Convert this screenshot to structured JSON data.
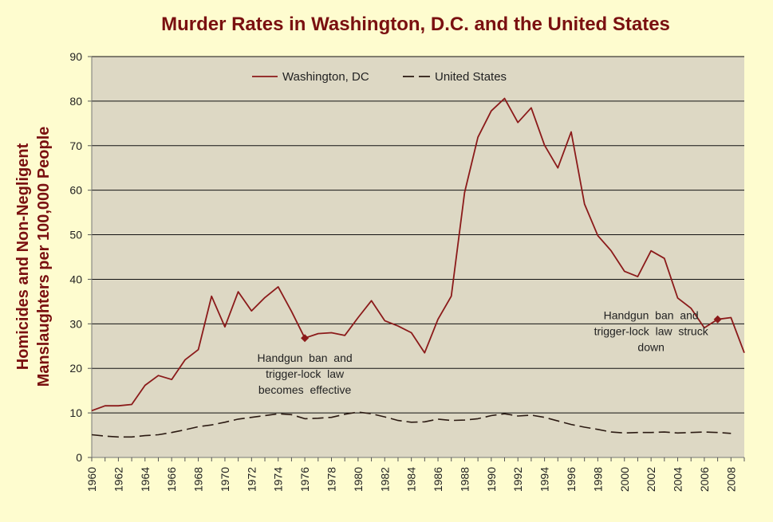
{
  "chart_data": {
    "type": "line",
    "title": "Murder Rates in Washington, D.C. and the United States",
    "ylabel": [
      "Homicides and Non-Negligent",
      "Manslaughters per 100,000 People"
    ],
    "xlabel": "",
    "xlim": [
      1960,
      2009
    ],
    "ylim": [
      0,
      90
    ],
    "yticks": [
      "0",
      "10",
      "20",
      "30",
      "40",
      "50",
      "60",
      "70",
      "80",
      "90"
    ],
    "xticks": [
      "1960",
      "1962",
      "1964",
      "1966",
      "1968",
      "1970",
      "1972",
      "1974",
      "1976",
      "1978",
      "1980",
      "1982",
      "1984",
      "1986",
      "1988",
      "1990",
      "1992",
      "1994",
      "1996",
      "1998",
      "2000",
      "2002",
      "2004",
      "2006",
      "2008"
    ],
    "grid": true,
    "legend_position": "top",
    "colors": {
      "background": "#fefccf",
      "plot_area": "#ddd8c4",
      "dc": "#8b1a1a",
      "us": "#2b1a12",
      "title": "#7a1010"
    },
    "series": [
      {
        "name": "Washington, DC",
        "style": "solid",
        "x": [
          1960,
          1961,
          1962,
          1963,
          1964,
          1965,
          1966,
          1967,
          1968,
          1969,
          1970,
          1971,
          1972,
          1973,
          1974,
          1975,
          1976,
          1977,
          1978,
          1979,
          1980,
          1981,
          1982,
          1983,
          1984,
          1985,
          1986,
          1987,
          1988,
          1989,
          1990,
          1991,
          1992,
          1993,
          1994,
          1995,
          1996,
          1997,
          1998,
          1999,
          2000,
          2001,
          2002,
          2003,
          2004,
          2005,
          2006,
          2007,
          2008,
          2009
        ],
        "values": [
          10.5,
          11.6,
          11.6,
          11.9,
          16.2,
          18.4,
          17.5,
          21.9,
          24.2,
          36.2,
          29.3,
          37.2,
          32.9,
          35.9,
          38.3,
          32.8,
          26.8,
          27.8,
          28.0,
          27.4,
          31.4,
          35.2,
          30.7,
          29.5,
          28.0,
          23.5,
          31.0,
          36.2,
          59.5,
          71.9,
          77.8,
          80.6,
          75.2,
          78.5,
          70.1,
          65.0,
          73.1,
          56.9,
          49.8,
          46.4,
          41.8,
          40.6,
          46.4,
          44.7,
          35.8,
          33.5,
          29.1,
          31.0,
          31.4,
          23.5
        ]
      },
      {
        "name": "United States",
        "style": "dashed",
        "x": [
          1960,
          1961,
          1962,
          1963,
          1964,
          1965,
          1966,
          1967,
          1968,
          1969,
          1970,
          1971,
          1972,
          1973,
          1974,
          1975,
          1976,
          1977,
          1978,
          1979,
          1980,
          1981,
          1982,
          1983,
          1984,
          1985,
          1986,
          1987,
          1988,
          1989,
          1990,
          1991,
          1992,
          1993,
          1994,
          1995,
          1996,
          1997,
          1998,
          1999,
          2000,
          2001,
          2002,
          2003,
          2004,
          2005,
          2006,
          2007,
          2008
        ],
        "values": [
          5.1,
          4.8,
          4.6,
          4.6,
          4.9,
          5.1,
          5.6,
          6.2,
          6.9,
          7.3,
          7.9,
          8.6,
          9.0,
          9.4,
          9.8,
          9.6,
          8.7,
          8.8,
          9.0,
          9.7,
          10.2,
          9.8,
          9.1,
          8.3,
          7.9,
          8.0,
          8.6,
          8.3,
          8.4,
          8.7,
          9.4,
          9.8,
          9.3,
          9.5,
          9.0,
          8.2,
          7.4,
          6.8,
          6.3,
          5.7,
          5.5,
          5.6,
          5.6,
          5.7,
          5.5,
          5.6,
          5.7,
          5.6,
          5.4
        ]
      }
    ],
    "markers": [
      {
        "series": "Washington, DC",
        "x": 1976,
        "y": 26.8
      },
      {
        "series": "Washington, DC",
        "x": 2007,
        "y": 31.0
      }
    ],
    "annotations": [
      {
        "id": "effective",
        "lines": [
          "Handgun  ban  and",
          "trigger-lock  law",
          "becomes  effective"
        ],
        "x": 1976,
        "y": 21.5
      },
      {
        "id": "struck",
        "lines": [
          "Handgun  ban  and",
          "trigger-lock  law  struck",
          "down"
        ],
        "x": 2002,
        "y": 31.0
      }
    ]
  }
}
